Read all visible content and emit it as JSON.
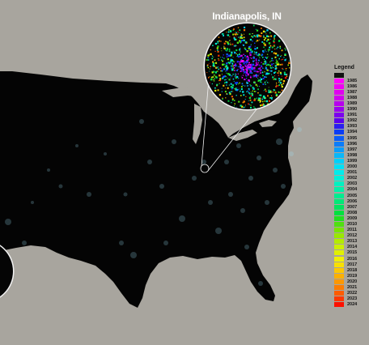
{
  "inset": {
    "title": "Indianapolis, IN"
  },
  "legend": {
    "title": "Legend",
    "no_change_color": "#111111",
    "items": [
      {
        "label": "1985",
        "color": "#ff00ff"
      },
      {
        "label": "1986",
        "color": "#f000f5"
      },
      {
        "label": "1987",
        "color": "#e000f0"
      },
      {
        "label": "1988",
        "color": "#d000ee"
      },
      {
        "label": "1989",
        "color": "#b800ee"
      },
      {
        "label": "1990",
        "color": "#9a00ee"
      },
      {
        "label": "1991",
        "color": "#7c00ee"
      },
      {
        "label": "1992",
        "color": "#5a00ee"
      },
      {
        "label": "1993",
        "color": "#2a1ef0"
      },
      {
        "label": "1994",
        "color": "#0a3cf5"
      },
      {
        "label": "1995",
        "color": "#0a5cf8"
      },
      {
        "label": "1996",
        "color": "#0a7cfa"
      },
      {
        "label": "1997",
        "color": "#0a9cfa"
      },
      {
        "label": "1998",
        "color": "#08b8fa"
      },
      {
        "label": "1999",
        "color": "#00d0fa"
      },
      {
        "label": "2000",
        "color": "#00e0f5"
      },
      {
        "label": "2001",
        "color": "#00ecec"
      },
      {
        "label": "2002",
        "color": "#00f0d8"
      },
      {
        "label": "2003",
        "color": "#00f0c0"
      },
      {
        "label": "2004",
        "color": "#00f0a8"
      },
      {
        "label": "2005",
        "color": "#00ec90"
      },
      {
        "label": "2006",
        "color": "#00e878"
      },
      {
        "label": "2007",
        "color": "#00e460"
      },
      {
        "label": "2008",
        "color": "#00e040"
      },
      {
        "label": "2009",
        "color": "#20e020"
      },
      {
        "label": "2010",
        "color": "#50e010"
      },
      {
        "label": "2011",
        "color": "#78e400"
      },
      {
        "label": "2012",
        "color": "#98e800"
      },
      {
        "label": "2013",
        "color": "#b4ec00"
      },
      {
        "label": "2014",
        "color": "#ccf000"
      },
      {
        "label": "2015",
        "color": "#e0f000"
      },
      {
        "label": "2016",
        "color": "#f0f000"
      },
      {
        "label": "2017",
        "color": "#f8e000"
      },
      {
        "label": "2018",
        "color": "#fcc800"
      },
      {
        "label": "2019",
        "color": "#fcb000"
      },
      {
        "label": "2020",
        "color": "#fc9800"
      },
      {
        "label": "2021",
        "color": "#fc7c00"
      },
      {
        "label": "2022",
        "color": "#fc5c00"
      },
      {
        "label": "2023",
        "color": "#fc3800"
      },
      {
        "label": "2024",
        "color": "#fc1000"
      }
    ]
  }
}
